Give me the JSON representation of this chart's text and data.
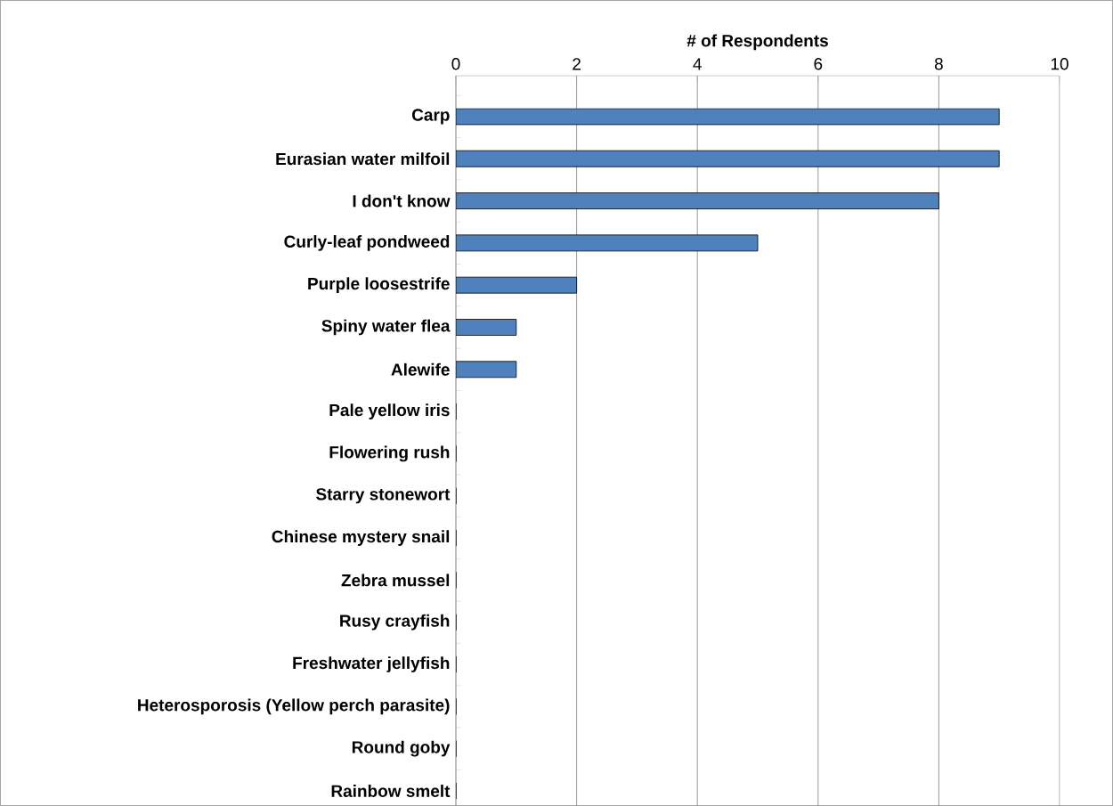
{
  "chart_data": {
    "type": "bar",
    "orientation": "horizontal",
    "xlabel": "# of Respondents",
    "categories": [
      "Carp",
      "Eurasian water milfoil",
      "I don't know",
      "Curly-leaf pondweed",
      "Purple loosestrife",
      "Spiny water flea",
      "Alewife",
      "Pale yellow iris",
      "Flowering rush",
      "Starry stonewort",
      "Chinese mystery snail",
      "Zebra mussel",
      "Rusy crayfish",
      "Freshwater jellyfish",
      "Heterosporosis (Yellow perch parasite)",
      "Round goby",
      "Rainbow smelt"
    ],
    "values": [
      9,
      9,
      8,
      5,
      2,
      1,
      1,
      0,
      0,
      0,
      0,
      0,
      0,
      0,
      0,
      0,
      0
    ],
    "color": "#4f81bd",
    "xlim": [
      0,
      10
    ],
    "xticks": [
      0,
      2,
      4,
      6,
      8,
      10
    ],
    "grid": "x"
  }
}
